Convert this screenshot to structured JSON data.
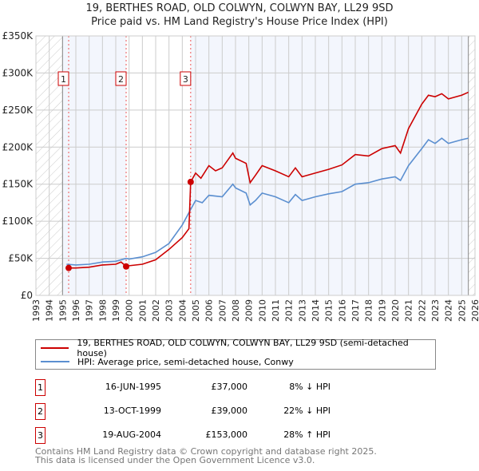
{
  "title": {
    "line1": "19, BERTHES ROAD, OLD COLWYN, COLWYN BAY, LL29 9SD",
    "line2": "Price paid vs. HM Land Registry's House Price Index (HPI)"
  },
  "chart_data": {
    "type": "line",
    "title": "19, BERTHES ROAD, OLD COLWYN, COLWYN BAY, LL29 9SD — Price paid vs. HM Land Registry's House Price Index (HPI)",
    "xlim": [
      1993,
      2026
    ],
    "ylim": [
      0,
      350000
    ],
    "x_ticks": [
      "1993",
      "1994",
      "1995",
      "1996",
      "1997",
      "1998",
      "1999",
      "2000",
      "2001",
      "2002",
      "2003",
      "2004",
      "2005",
      "2006",
      "2007",
      "2008",
      "2009",
      "2010",
      "2011",
      "2012",
      "2013",
      "2014",
      "2015",
      "2016",
      "2017",
      "2018",
      "2019",
      "2020",
      "2021",
      "2022",
      "2023",
      "2024",
      "2025",
      "2026"
    ],
    "y_ticks": [
      {
        "v": 0,
        "label": "£0"
      },
      {
        "v": 50000,
        "label": "£50K"
      },
      {
        "v": 100000,
        "label": "£100K"
      },
      {
        "v": 150000,
        "label": "£150K"
      },
      {
        "v": 200000,
        "label": "£200K"
      },
      {
        "v": 250000,
        "label": "£250K"
      },
      {
        "v": 300000,
        "label": "£300K"
      },
      {
        "v": 350000,
        "label": "£350K"
      }
    ],
    "grid": true,
    "colors": {
      "property": "#cc0000",
      "hpi": "#5b8fd0",
      "shade": "#f3f6fd"
    },
    "series": [
      {
        "name": "19, BERTHES ROAD, OLD COLWYN, COLWYN BAY, LL29 9SD (semi-detached house)",
        "x": [
          1995.46,
          1996,
          1997,
          1998,
          1999,
          1999.4,
          1999.78,
          2000,
          2001,
          2002,
          2003,
          2004,
          2004.5,
          2004.63,
          2005,
          2005.4,
          2006,
          2006.5,
          2007,
          2007.8,
          2008,
          2008.8,
          2009.1,
          2009.5,
          2010,
          2011,
          2012,
          2012.5,
          2013,
          2014,
          2015,
          2016,
          2017,
          2018,
          2019,
          2020,
          2020.4,
          2021,
          2022,
          2022.5,
          2023,
          2023.5,
          2024,
          2025,
          2025.5
        ],
        "y": [
          37000,
          37000,
          38000,
          41000,
          42000,
          45000,
          39000,
          40000,
          42000,
          48000,
          62000,
          78000,
          90000,
          153000,
          165000,
          158000,
          175000,
          168000,
          172000,
          192000,
          185000,
          178000,
          152000,
          162000,
          175000,
          168000,
          160000,
          172000,
          160000,
          165000,
          170000,
          176000,
          190000,
          188000,
          198000,
          202000,
          192000,
          225000,
          258000,
          270000,
          268000,
          272000,
          265000,
          270000,
          274000
        ]
      },
      {
        "name": "HPI: Average price, semi-detached house, Conwy",
        "x": [
          1995.3,
          1996,
          1997,
          1998,
          1999,
          1999.8,
          2000,
          2001,
          2002,
          2003,
          2004,
          2004.6,
          2005,
          2005.5,
          2006,
          2007,
          2007.8,
          2008,
          2008.8,
          2009.1,
          2009.5,
          2010,
          2011,
          2012,
          2012.5,
          2013,
          2014,
          2015,
          2016,
          2017,
          2018,
          2019,
          2020,
          2020.4,
          2021,
          2022,
          2022.5,
          2023,
          2023.5,
          2024,
          2025,
          2025.5
        ],
        "y": [
          42000,
          41000,
          42000,
          45000,
          46000,
          50000,
          49000,
          52000,
          58000,
          70000,
          95000,
          115000,
          128000,
          125000,
          135000,
          133000,
          150000,
          145000,
          138000,
          122000,
          128000,
          138000,
          133000,
          125000,
          136000,
          128000,
          133000,
          137000,
          140000,
          150000,
          152000,
          157000,
          160000,
          155000,
          175000,
          198000,
          210000,
          205000,
          212000,
          205000,
          210000,
          212000
        ]
      }
    ],
    "sales": [
      {
        "label": "1",
        "x": 1995.46,
        "price": 37000
      },
      {
        "label": "2",
        "x": 1999.78,
        "price": 39000
      },
      {
        "label": "3",
        "x": 2004.63,
        "price": 153000
      }
    ],
    "data_end": 2025.5
  },
  "legend": {
    "property": "19, BERTHES ROAD, OLD COLWYN, COLWYN BAY, LL29 9SD (semi-detached house)",
    "hpi": "HPI: Average price, semi-detached house, Conwy"
  },
  "transactions": [
    {
      "num": "1",
      "date": "16-JUN-1995",
      "price": "£37,000",
      "hpi": "8% ↓ HPI"
    },
    {
      "num": "2",
      "date": "13-OCT-1999",
      "price": "£39,000",
      "hpi": "22% ↓ HPI"
    },
    {
      "num": "3",
      "date": "19-AUG-2004",
      "price": "£153,000",
      "hpi": "28% ↑ HPI"
    }
  ],
  "footer": {
    "line1": "Contains HM Land Registry data © Crown copyright and database right 2025.",
    "line2": "This data is licensed under the Open Government Licence v3.0."
  }
}
